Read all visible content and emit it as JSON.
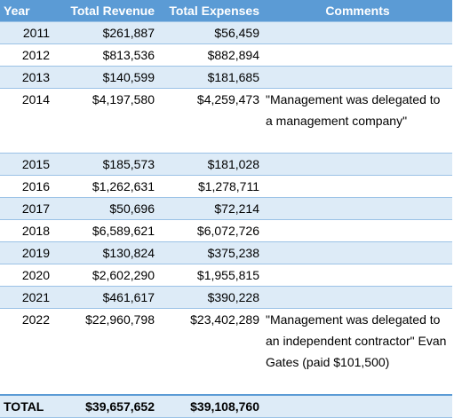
{
  "headers": {
    "year": "Year",
    "revenue": "Total Revenue",
    "expenses": "Total Expenses",
    "comments": "Comments"
  },
  "rows": [
    {
      "year": "2011",
      "revenue": "$261,887",
      "expenses": "$56,459",
      "comment": ""
    },
    {
      "year": "2012",
      "revenue": "$813,536",
      "expenses": "$882,894",
      "comment": ""
    },
    {
      "year": "2013",
      "revenue": "$140,599",
      "expenses": "$181,685",
      "comment": ""
    },
    {
      "year": "2014",
      "revenue": "$4,197,580",
      "expenses": "$4,259,473",
      "comment": "\"Management was delegated to a management company\""
    },
    {
      "year": "2015",
      "revenue": "$185,573",
      "expenses": "$181,028",
      "comment": ""
    },
    {
      "year": "2016",
      "revenue": "$1,262,631",
      "expenses": "$1,278,711",
      "comment": ""
    },
    {
      "year": "2017",
      "revenue": "$50,696",
      "expenses": "$72,214",
      "comment": ""
    },
    {
      "year": "2018",
      "revenue": "$6,589,621",
      "expenses": "$6,072,726",
      "comment": ""
    },
    {
      "year": "2019",
      "revenue": "$130,824",
      "expenses": "$375,238",
      "comment": ""
    },
    {
      "year": "2020",
      "revenue": "$2,602,290",
      "expenses": "$1,955,815",
      "comment": ""
    },
    {
      "year": "2021",
      "revenue": "$461,617",
      "expenses": "$390,228",
      "comment": ""
    },
    {
      "year": "2022",
      "revenue": "$22,960,798",
      "expenses": "$23,402,289",
      "comment": "\"Management was delegated to an independent contractor\" Evan Gates (paid $101,500)"
    }
  ],
  "total": {
    "label": "TOTAL",
    "revenue": "$39,657,652",
    "expenses": "$39,108,760"
  },
  "colors": {
    "header_bg": "#5b9bd5",
    "band_bg": "#ddebf7",
    "grid": "#9bc2e6"
  }
}
